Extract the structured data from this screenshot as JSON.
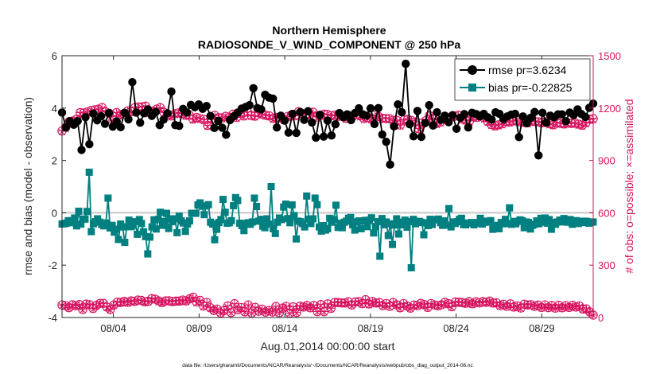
{
  "chart_data": {
    "type": "line",
    "title": "Northern Hemisphere",
    "subtitle": "RADIOSONDE_V_WIND_COMPONENT @ 250 hPa",
    "xlabel": "Aug.01,2014 00:00:00 start",
    "ylabel": "rmse and bias (model - observation)",
    "ylabel_right": "# of obs: o=possible; ×=assimilated",
    "footnote": "data file: /Users/gharamti/Documents/NCAR/Reanalysis/~/Documents/NCAR/Reanalysis/webpub/obs_diag_output_2014-08.nc",
    "x_range": [
      1.0,
      32.0
    ],
    "ylim": [
      -4,
      6
    ],
    "ylim_right": [
      0,
      1500
    ],
    "x_ticks": [
      {
        "x": 4,
        "label": "08/04"
      },
      {
        "x": 9,
        "label": "08/09"
      },
      {
        "x": 14,
        "label": "08/14"
      },
      {
        "x": 19,
        "label": "08/19"
      },
      {
        "x": 24,
        "label": "08/24"
      },
      {
        "x": 29,
        "label": "08/29"
      }
    ],
    "y_ticks": [
      {
        "v": -4,
        "label": "-4"
      },
      {
        "v": -2,
        "label": "-2"
      },
      {
        "v": 0,
        "label": "0"
      },
      {
        "v": 2,
        "label": "2"
      },
      {
        "v": 4,
        "label": "4"
      },
      {
        "v": 6,
        "label": "6"
      }
    ],
    "y_ticks_right": [
      {
        "v": 0,
        "label": "0"
      },
      {
        "v": 300,
        "label": "300"
      },
      {
        "v": 600,
        "label": "600"
      },
      {
        "v": 900,
        "label": "900"
      },
      {
        "v": 1200,
        "label": "1200"
      },
      {
        "v": 1500,
        "label": "1500"
      }
    ],
    "zero_line": 0,
    "legend": {
      "position": "top-right",
      "entries": [
        "rmse pr=3.6234",
        "bias pr=-0.22825"
      ]
    },
    "colors": {
      "rmse": "#000000",
      "bias": "#008080",
      "obs": "#d6135f",
      "zero_line": "#c8c8c8",
      "axis": "#262626"
    },
    "series": [
      {
        "name": "rmse pr=3.6234",
        "axis": "left",
        "values": [
          3.83,
          3.26,
          3.5,
          3.36,
          3.5,
          2.4,
          3.65,
          2.62,
          3.79,
          3.53,
          3.69,
          3.4,
          3.81,
          3.29,
          3.49,
          3.27,
          3.82,
          3.57,
          4.99,
          3.83,
          3.44,
          3.8,
          3.95,
          3.7,
          3.85,
          3.35,
          3.56,
          3.8,
          4.63,
          3.35,
          3.32,
          3.97,
          3.83,
          4.12,
          4.03,
          4.14,
          3.97,
          4.08,
          3.7,
          3.24,
          3.51,
          3.25,
          2.98,
          3.54,
          3.69,
          3.83,
          3.98,
          4.04,
          4.11,
          4.76,
          4.0,
          3.95,
          4.51,
          4.4,
          4.36,
          3.26,
          3.71,
          3.52,
          3.06,
          3.78,
          3.05,
          3.85,
          3.55,
          3.88,
          3.45,
          2.87,
          3.74,
          2.91,
          3.52,
          2.95,
          3.38,
          3.81,
          3.65,
          3.76,
          3.54,
          3.81,
          3.99,
          3.76,
          3.71,
          3.99,
          3.39,
          4.0,
          2.99,
          2.71,
          1.84,
          3.3,
          4.14,
          3.84,
          5.69,
          3.38,
          2.92,
          3.89,
          2.9,
          3.43,
          4.11,
          3.33,
          3.84,
          3.55,
          3.71,
          3.46,
          3.73,
          3.21,
          3.63,
          3.77,
          3.26,
          3.82,
          3.77,
          3.68,
          3.78,
          3.65,
          3.56,
          3.84,
          3.78,
          3.58,
          3.68,
          3.75,
          3.78,
          2.89,
          3.68,
          3.42,
          3.63,
          3.85,
          2.19,
          3.82,
          3.44,
          3.71,
          3.65,
          3.76,
          3.76,
          3.5,
          3.83,
          3.73,
          3.95,
          3.77,
          3.66,
          4.01,
          4.17
        ]
      },
      {
        "name": "bias pr=-0.22825",
        "axis": "left",
        "values": [
          -0.43,
          -0.42,
          -0.4,
          -0.3,
          -0.38,
          -0.3,
          -0.2,
          -0.5,
          0.06,
          -0.43,
          -0.24,
          -0.24,
          0.05,
          1.55,
          -0.72,
          -0.42,
          -0.34,
          -0.23,
          -0.36,
          -0.45,
          -0.5,
          -0.39,
          0.56,
          -0.58,
          -0.48,
          -0.74,
          -0.63,
          -1.02,
          -0.43,
          -0.54,
          -1.13,
          -0.53,
          -0.28,
          -0.53,
          -0.48,
          -0.34,
          -0.82,
          -0.26,
          -0.41,
          -0.73,
          -0.91,
          -1.57,
          -0.93,
          -0.54,
          -0.27,
          -0.62,
          -0.25,
          0.02,
          -0.48,
          -0.33,
          -0.02,
          -0.6,
          -0.23,
          -0.34,
          -0.23,
          -0.76,
          -0.13,
          -0.31,
          -0.39,
          -0.71,
          -0.43,
          -0.31,
          -0.02,
          -0.02,
          -0.02,
          0.3,
          0.38,
          0.25,
          -0.07,
          0.26,
          0.31,
          -0.36,
          -0.43,
          -1.03,
          -0.63,
          -0.37,
          -0.26,
          0.51,
          0.02,
          -0.4,
          -0.38,
          -0.3,
          0.27,
          0.58,
          0.47,
          -0.4,
          -0.49,
          -0.68,
          -0.41,
          -0.38,
          -0.44,
          -0.35,
          0.56,
          0.24,
          -0.32,
          -0.25,
          -0.51,
          -0.57,
          -0.23,
          -0.43,
          1.0,
          -0.61,
          -0.79,
          -0.36,
          -0.2,
          -0.26,
          0.22,
          0.33,
          -0.22,
          -0.38,
          0.3,
          -0.11,
          -1.0,
          -0.32,
          -0.34,
          -0.41,
          -0.54,
          0.64,
          -0.24,
          -0.41,
          -0.23,
          0.56,
          0.31,
          -0.54,
          -0.7,
          -0.49,
          -0.66,
          -0.61,
          -0.21,
          -0.36,
          -0.26,
          0.29,
          -0.56,
          -0.4,
          -0.57,
          -0.36,
          -0.32,
          -0.21,
          -0.18,
          -0.46,
          -0.66,
          -0.35,
          -0.31,
          -0.61,
          -0.31,
          -0.29,
          -0.53,
          -0.28,
          -0.19,
          -0.77,
          -0.53,
          -0.34,
          -1.66,
          -0.22,
          -0.46,
          -0.35,
          -0.87,
          -0.42,
          -1.21,
          -0.47,
          -0.23,
          -0.81,
          -0.46,
          -0.36,
          -0.28,
          -0.55,
          -0.34,
          -2.1,
          -0.25,
          -0.42,
          -0.33,
          -0.33,
          -0.37,
          -0.84,
          -0.39,
          -0.49,
          -0.25,
          -0.45,
          -0.26,
          -0.27,
          -0.24,
          -0.38,
          -0.48,
          -0.31,
          -0.47,
          0.16,
          -0.54,
          -0.35,
          -0.41,
          -0.34,
          -0.25,
          -0.21,
          -0.45,
          -0.46,
          -0.39,
          -0.4,
          -0.37,
          -0.46,
          -0.4,
          -0.38,
          -0.21,
          -0.43,
          -0.36,
          -0.32,
          -0.36,
          -0.3,
          -0.63,
          -0.48,
          -0.51,
          -0.61,
          -0.37,
          -0.42,
          -0.25,
          -0.41,
          0.19,
          -0.44,
          -0.33,
          -0.42,
          -0.33,
          -0.27,
          -0.3,
          -0.57,
          -0.35,
          -0.37,
          -0.62,
          -0.48,
          -0.44,
          -0.31,
          -0.42,
          -0.21,
          -0.36,
          -0.2,
          -0.4,
          -0.26,
          -0.63,
          -0.37,
          -0.44,
          -0.35,
          -0.28,
          -0.35,
          -0.22,
          -0.31,
          -0.36,
          -0.26,
          -0.44,
          -0.34,
          -0.3,
          -0.41,
          -0.33,
          -0.37,
          -0.32,
          -0.33,
          -0.4,
          -0.36,
          -0.35
        ]
      },
      {
        "name": "possible",
        "axis": "right",
        "values": [
          1069,
          1090,
          1123,
          1126,
          1137,
          1174,
          1172,
          1178,
          1186,
          1190,
          1194,
          1203,
          1178,
          1170,
          1131,
          1174,
          1162,
          1167,
          1183,
          1179,
          1202,
          1206,
          1207,
          1211,
          1174,
          1182,
          1194,
          1202,
          1175,
          1163,
          1155,
          1168,
          1172,
          1169,
          1159,
          1159,
          1137,
          1146,
          1140,
          1134,
          1101,
          1136,
          1158,
          1145,
          1144,
          1153,
          1146,
          1165,
          1147,
          1169,
          1155,
          1178,
          1158,
          1154,
          1173,
          1165,
          1159,
          1155,
          1141,
          1146,
          1144,
          1135,
          1152,
          1160,
          1156,
          1179,
          1169,
          1162,
          1163,
          1176,
          1149,
          1158,
          1165,
          1163,
          1156,
          1160,
          1153,
          1154,
          1141,
          1156,
          1157,
          1163,
          1155,
          1140,
          1147,
          1138,
          1160,
          1152,
          1141,
          1140,
          1139,
          1130,
          1130,
          1103,
          1132,
          1135,
          1129,
          1120,
          1082,
          1114,
          1128,
          1157,
          1140,
          1112,
          1120,
          1136,
          1134,
          1150,
          1154,
          1159,
          1137,
          1131,
          1126,
          1153,
          1147,
          1157,
          1144,
          1123,
          1106,
          1098,
          1104,
          1110,
          1123,
          1120,
          1126,
          1130,
          1121,
          1118,
          1116,
          1126,
          1123,
          1121,
          1116,
          1122,
          1110,
          1104,
          1116,
          1113,
          1109,
          1116,
          1112,
          1114,
          1108,
          1102,
          1116,
          1136,
          1139
        ],
        "marker": "circle-plus"
      },
      {
        "name": "assimilated",
        "axis": "right",
        "values": [
          1063,
          1080,
          1112,
          1117,
          1129,
          1165,
          1163,
          1171,
          1177,
          1182,
          1186,
          1194,
          1170,
          1160,
          1122,
          1165,
          1154,
          1158,
          1174,
          1170,
          1192,
          1196,
          1199,
          1202,
          1165,
          1173,
          1186,
          1192,
          1167,
          1155,
          1146,
          1160,
          1164,
          1160,
          1150,
          1150,
          1128,
          1138,
          1132,
          1126,
          1092,
          1128,
          1150,
          1136,
          1136,
          1144,
          1138,
          1156,
          1139,
          1160,
          1147,
          1169,
          1150,
          1146,
          1165,
          1156,
          1151,
          1147,
          1132,
          1138,
          1135,
          1127,
          1144,
          1152,
          1147,
          1171,
          1161,
          1154,
          1155,
          1167,
          1141,
          1150,
          1157,
          1154,
          1147,
          1152,
          1145,
          1146,
          1133,
          1147,
          1149,
          1155,
          1147,
          1132,
          1139,
          1129,
          1152,
          1143,
          1132,
          1132,
          1130,
          1122,
          1121,
          1095,
          1124,
          1126,
          1120,
          1112,
          1074,
          1106,
          1119,
          1149,
          1132,
          1103,
          1112,
          1127,
          1125,
          1141,
          1146,
          1150,
          1128,
          1123,
          1118,
          1145,
          1138,
          1149,
          1135,
          1115,
          1098,
          1090,
          1095,
          1101,
          1115,
          1111,
          1117,
          1122,
          1113,
          1109,
          1107,
          1118,
          1115,
          1112,
          1108,
          1113,
          1101,
          1096,
          1107,
          1104,
          1101,
          1108,
          1104,
          1106,
          1099,
          1093,
          1107,
          1127,
          1130
        ],
        "marker": "asterisk"
      },
      {
        "name": "possible",
        "axis": "right",
        "values": [
          72,
          68,
          57,
          73,
          67,
          74,
          46,
          77,
          73,
          52,
          70,
          81,
          81,
          60,
          46,
          72,
          87,
          86,
          93,
          87,
          95,
          92,
          100,
          98,
          90,
          93,
          108,
          105,
          95,
          86,
          95,
          96,
          91,
          94,
          94,
          100,
          95,
          107,
          116,
          89,
          98,
          66,
          86,
          56,
          40,
          48,
          26,
          40,
          66,
          28,
          79,
          45,
          57,
          33,
          72,
          26,
          58,
          36,
          48,
          31,
          40,
          32,
          63,
          27,
          54,
          64,
          25,
          61,
          29,
          65,
          60,
          69,
          56,
          69,
          34,
          74,
          34,
          78,
          53,
          86,
          86,
          84,
          83,
          90,
          72,
          89,
          91,
          80,
          102,
          78,
          92,
          83,
          86,
          68,
          80,
          64,
          86,
          73,
          56,
          80,
          66,
          54,
          71,
          68,
          81,
          74,
          58,
          80,
          72,
          67,
          73,
          87,
          79,
          62,
          89,
          87,
          86,
          82,
          91,
          79,
          90,
          84,
          91,
          87,
          94,
          83,
          84,
          68,
          76,
          64,
          78,
          60,
          66,
          55,
          76,
          72,
          73,
          64,
          71,
          58,
          72,
          57,
          69,
          54,
          70,
          56,
          68,
          58,
          70,
          60,
          66,
          49,
          49,
          32,
          14
        ],
        "marker": "circle-plus"
      },
      {
        "name": "assimilated",
        "axis": "right",
        "values": [
          66,
          62,
          52,
          67,
          61,
          68,
          42,
          71,
          67,
          47,
          64,
          75,
          75,
          55,
          42,
          66,
          80,
          80,
          86,
          80,
          88,
          85,
          93,
          91,
          83,
          86,
          101,
          98,
          88,
          79,
          88,
          89,
          84,
          87,
          87,
          93,
          88,
          100,
          109,
          82,
          91,
          60,
          79,
          51,
          36,
          44,
          23,
          36,
          60,
          25,
          72,
          41,
          52,
          30,
          66,
          23,
          53,
          32,
          44,
          28,
          36,
          29,
          57,
          24,
          49,
          58,
          22,
          55,
          26,
          59,
          54,
          63,
          51,
          63,
          31,
          68,
          31,
          72,
          48,
          79,
          79,
          77,
          76,
          83,
          66,
          82,
          84,
          73,
          95,
          71,
          85,
          76,
          79,
          62,
          73,
          58,
          79,
          67,
          51,
          73,
          60,
          49,
          65,
          62,
          74,
          68,
          53,
          73,
          66,
          61,
          67,
          80,
          72,
          56,
          82,
          80,
          79,
          75,
          84,
          72,
          83,
          77,
          84,
          80,
          87,
          76,
          77,
          62,
          69,
          58,
          71,
          54,
          60,
          50,
          69,
          66,
          67,
          58,
          65,
          53,
          66,
          52,
          63,
          49,
          64,
          51,
          62,
          53,
          64,
          55,
          60,
          44,
          44,
          29,
          12
        ],
        "marker": "asterisk"
      }
    ]
  }
}
